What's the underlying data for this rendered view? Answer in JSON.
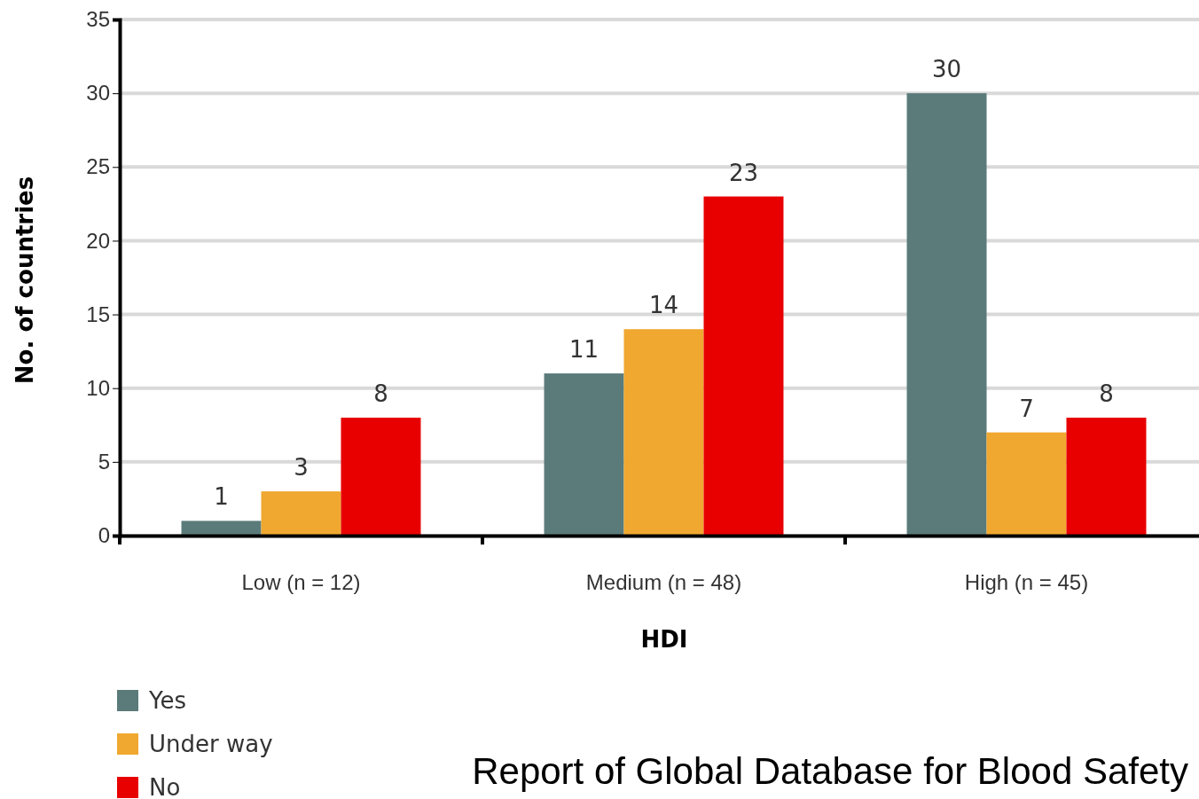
{
  "chart_data": {
    "type": "bar",
    "xlabel": "HDI",
    "ylabel": "No. of countries",
    "categories": [
      "Low (n = 12)",
      "Medium (n = 48)",
      "High (n = 45)"
    ],
    "series": [
      {
        "name": "Yes",
        "color": "#5a7b7a",
        "values": [
          1,
          11,
          30
        ]
      },
      {
        "name": "Under way",
        "color": "#f0a830",
        "values": [
          3,
          14,
          7
        ]
      },
      {
        "name": "No",
        "color": "#e80000",
        "values": [
          8,
          23,
          8
        ]
      }
    ],
    "ylim": [
      0,
      35
    ],
    "yticks": [
      0,
      5,
      10,
      15,
      20,
      25,
      30,
      35
    ],
    "grid": "y",
    "legend": "bottom left",
    "data_labels": true,
    "annotations": [
      "Report of Global Database for Blood Safety"
    ]
  }
}
